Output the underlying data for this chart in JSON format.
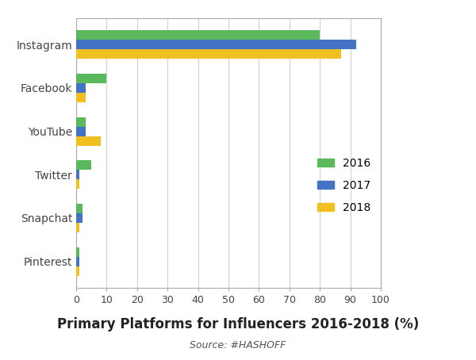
{
  "categories": [
    "Instagram",
    "Facebook",
    "YouTube",
    "Twitter",
    "Snapchat",
    "Pinterest"
  ],
  "series": {
    "2016": [
      80,
      10,
      3,
      5,
      2,
      1
    ],
    "2017": [
      92,
      3,
      3,
      1,
      2,
      1
    ],
    "2018": [
      87,
      3,
      8,
      1,
      1,
      1
    ]
  },
  "colors": {
    "2016": "#5cb85c",
    "2017": "#4472c4",
    "2018": "#f0c020"
  },
  "bar_height": 0.22,
  "xlim": [
    0,
    100
  ],
  "xticks": [
    0,
    10,
    20,
    30,
    40,
    50,
    60,
    70,
    80,
    90,
    100
  ],
  "title": "Primary Platforms for Influencers 2016-2018 (%)",
  "source": "Source: #HASHOFF",
  "title_fontsize": 12,
  "source_fontsize": 9,
  "background_color": "#ffffff",
  "grid_color": "#d0d0d0"
}
